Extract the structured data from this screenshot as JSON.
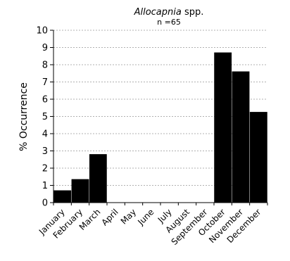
{
  "chart_data": {
    "type": "bar",
    "title": {
      "italic": "Allocapnia",
      "rest": " spp."
    },
    "subtitle": "n =65",
    "ylabel": "% Occurrence",
    "xlabel": "",
    "ylim": [
      0,
      10
    ],
    "yticks": [
      "0",
      "1",
      "2",
      "3",
      "4",
      "5",
      "6",
      "7",
      "8",
      "9",
      "10"
    ],
    "grid": true,
    "categories": [
      "January",
      "February",
      "March",
      "April",
      "May",
      "June",
      "July",
      "August",
      "September",
      "October",
      "November",
      "December"
    ],
    "values": [
      0.7,
      1.35,
      2.8,
      0,
      0,
      0,
      0,
      0,
      0,
      8.7,
      7.6,
      5.25
    ],
    "bar_color": "#000000",
    "grid_color": "#b0b0b0"
  }
}
